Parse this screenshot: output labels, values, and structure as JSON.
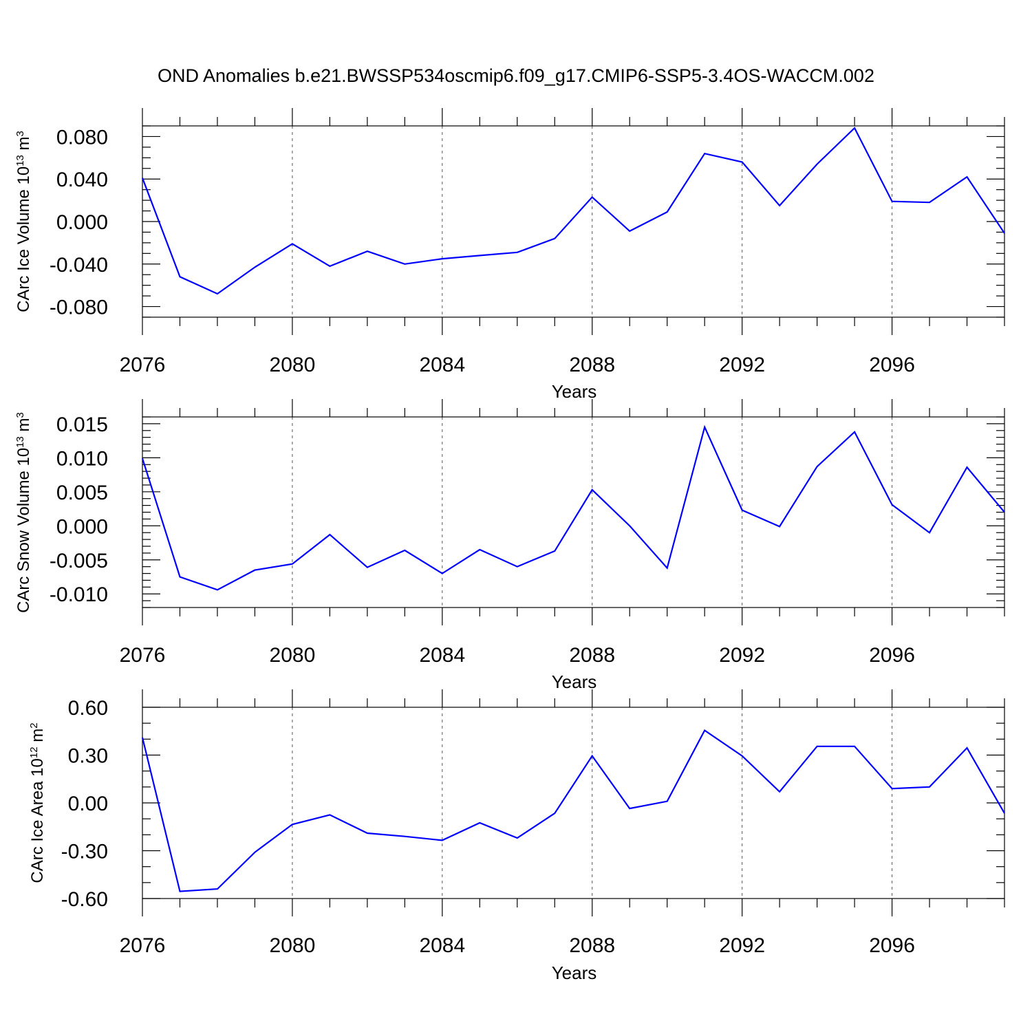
{
  "title": "OND Anomalies b.e21.BWSSP534oscmip6.f09_g17.CMIP6-SSP5-3.4OS-WACCM.002",
  "colors": {
    "line": "#0000ff",
    "axis": "#000000",
    "grid": "#555555"
  },
  "chart_data": [
    {
      "type": "line",
      "ylabel": "CArc Ice Volume 10",
      "ylabel_exp": "13",
      "ylabel_unit": " m",
      "ylabel_unit_exp": "3",
      "xlabel": "Years",
      "xlim": [
        2076,
        2099
      ],
      "ylim": [
        -0.09,
        0.09
      ],
      "x_ticks": [
        2076,
        2080,
        2084,
        2088,
        2092,
        2096
      ],
      "x_tick_labels": [
        "2076",
        "2080",
        "2084",
        "2088",
        "2092",
        "2096"
      ],
      "y_ticks": [
        -0.08,
        -0.04,
        0.0,
        0.04,
        0.08
      ],
      "y_tick_labels": [
        "-0.080",
        "-0.040",
        "0.000",
        "0.040",
        "0.080"
      ],
      "y_minor_step": 0.01,
      "grid": "x-dashed",
      "series": [
        {
          "x": [
            2076,
            2077,
            2078,
            2079,
            2080,
            2081,
            2082,
            2083,
            2084,
            2085,
            2086,
            2087,
            2088,
            2089,
            2090,
            2091,
            2092,
            2093,
            2094,
            2095,
            2096,
            2097,
            2098,
            2099
          ],
          "values": [
            0.041,
            -0.052,
            -0.068,
            -0.043,
            -0.021,
            -0.042,
            -0.028,
            -0.04,
            -0.035,
            -0.032,
            -0.029,
            -0.016,
            0.023,
            -0.009,
            0.009,
            0.064,
            0.056,
            0.015,
            0.054,
            0.088,
            0.019,
            0.018,
            0.042,
            -0.011
          ]
        }
      ]
    },
    {
      "type": "line",
      "ylabel": "CArc Snow Volume 10",
      "ylabel_exp": "13",
      "ylabel_unit": " m",
      "ylabel_unit_exp": "3",
      "xlabel": "Years",
      "xlim": [
        2076,
        2099
      ],
      "ylim": [
        -0.012,
        0.016
      ],
      "x_ticks": [
        2076,
        2080,
        2084,
        2088,
        2092,
        2096
      ],
      "x_tick_labels": [
        "2076",
        "2080",
        "2084",
        "2088",
        "2092",
        "2096"
      ],
      "y_ticks": [
        -0.01,
        -0.005,
        0.0,
        0.005,
        0.01,
        0.015
      ],
      "y_tick_labels": [
        "-0.010",
        "-0.005",
        "0.000",
        "0.005",
        "0.010",
        "0.015"
      ],
      "y_minor_step": 0.001,
      "grid": "x-dashed",
      "series": [
        {
          "x": [
            2076,
            2077,
            2078,
            2079,
            2080,
            2081,
            2082,
            2083,
            2084,
            2085,
            2086,
            2087,
            2088,
            2089,
            2090,
            2091,
            2092,
            2093,
            2094,
            2095,
            2096,
            2097,
            2098,
            2099
          ],
          "values": [
            0.0099,
            -0.0075,
            -0.0094,
            -0.0065,
            -0.0056,
            -0.0013,
            -0.0061,
            -0.0036,
            -0.007,
            -0.0035,
            -0.006,
            -0.0037,
            0.0053,
            0.0,
            -0.0062,
            0.0145,
            0.0023,
            -0.0001,
            0.0087,
            0.0138,
            0.0031,
            -0.001,
            0.0086,
            0.002
          ]
        }
      ]
    },
    {
      "type": "line",
      "ylabel": "CArc Ice Area 10",
      "ylabel_exp": "12",
      "ylabel_unit": " m",
      "ylabel_unit_exp": "2",
      "xlabel": "Years",
      "xlim": [
        2076,
        2099
      ],
      "ylim": [
        -0.6,
        0.6
      ],
      "x_ticks": [
        2076,
        2080,
        2084,
        2088,
        2092,
        2096
      ],
      "x_tick_labels": [
        "2076",
        "2080",
        "2084",
        "2088",
        "2092",
        "2096"
      ],
      "y_ticks": [
        -0.6,
        -0.3,
        0.0,
        0.3,
        0.6
      ],
      "y_tick_labels": [
        "-0.60",
        "-0.30",
        "0.00",
        "0.30",
        "0.60"
      ],
      "y_minor_step": 0.1,
      "grid": "x-dashed",
      "series": [
        {
          "x": [
            2076,
            2077,
            2078,
            2079,
            2080,
            2081,
            2082,
            2083,
            2084,
            2085,
            2086,
            2087,
            2088,
            2089,
            2090,
            2091,
            2092,
            2093,
            2094,
            2095,
            2096,
            2097,
            2098,
            2099
          ],
          "values": [
            0.41,
            -0.555,
            -0.54,
            -0.31,
            -0.135,
            -0.075,
            -0.19,
            -0.21,
            -0.235,
            -0.125,
            -0.22,
            -0.065,
            0.295,
            -0.035,
            0.01,
            0.455,
            0.295,
            0.07,
            0.355,
            0.355,
            0.09,
            0.1,
            0.345,
            -0.065
          ]
        }
      ]
    }
  ]
}
